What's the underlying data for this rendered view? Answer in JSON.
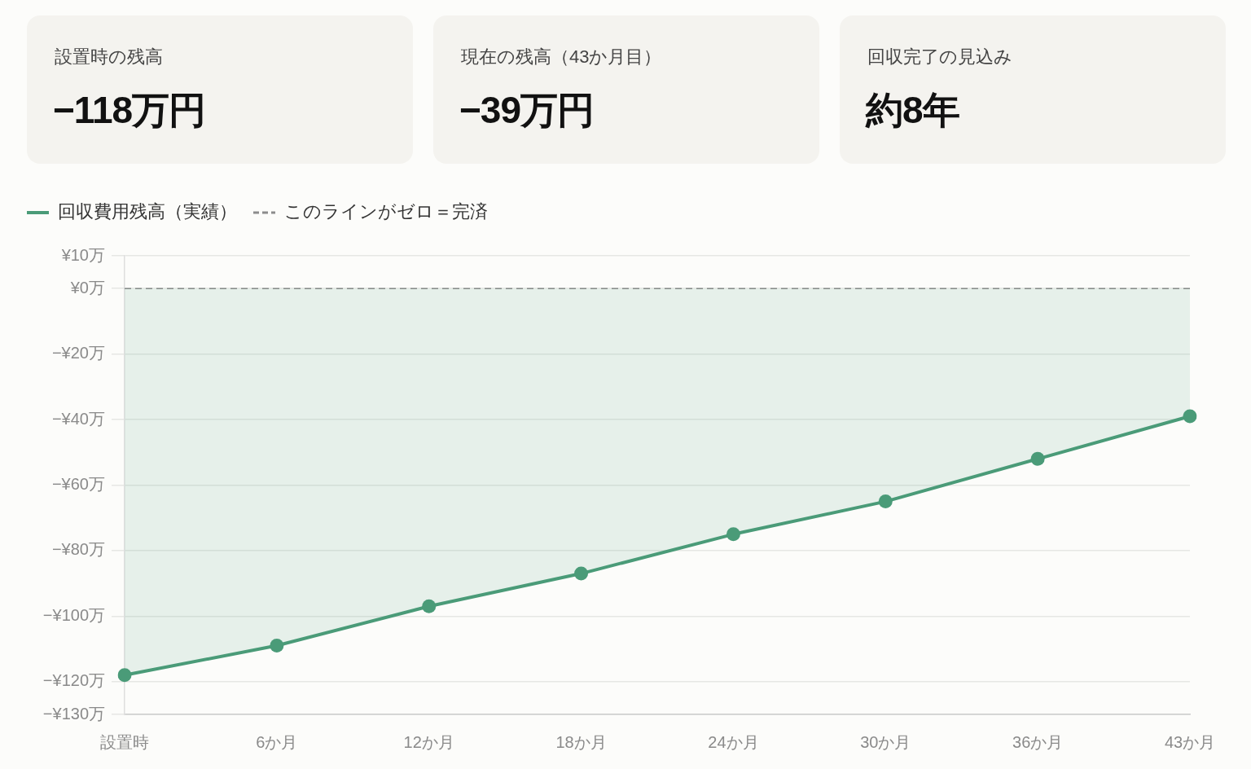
{
  "chart_data": [
    {
      "type": "other",
      "title": "設置時の残高",
      "annotations": [
        "−118万円"
      ]
    },
    {
      "type": "other",
      "title": "現在の残高（43か月目）",
      "annotations": [
        "−39万円"
      ]
    },
    {
      "type": "other",
      "title": "回収完了の見込み",
      "annotations": [
        "約8年"
      ]
    },
    {
      "type": "area",
      "categories": [
        "設置時",
        "6か月",
        "12か月",
        "18か月",
        "24か月",
        "30か月",
        "36か月",
        "43か月"
      ],
      "series": [
        {
          "name": "回収費用残高（実績）",
          "color": "#4a9b78",
          "values": [
            -118,
            -109,
            -97,
            -87,
            -75,
            -65,
            -52,
            -39
          ]
        }
      ],
      "ylim": [
        -130,
        10
      ],
      "yticks": [
        {
          "value": -130,
          "label": "−¥130万"
        },
        {
          "value": -120,
          "label": "−¥120万"
        },
        {
          "value": -100,
          "label": "−¥100万"
        },
        {
          "value": -80,
          "label": "−¥80万"
        },
        {
          "value": -60,
          "label": "−¥60万"
        },
        {
          "value": -40,
          "label": "−¥40万"
        },
        {
          "value": -20,
          "label": "−¥20万"
        },
        {
          "value": 0,
          "label": "¥0万"
        },
        {
          "value": 10,
          "label": "¥10万"
        }
      ],
      "ref_lines": [
        {
          "axis": "y",
          "value": 0,
          "label": "このラインがゼロ＝完済",
          "color": "#8c8c8c",
          "line_style": "dashed"
        }
      ],
      "grid": "y",
      "legend": "top left",
      "marker": "circle",
      "line_style": "solid"
    }
  ]
}
